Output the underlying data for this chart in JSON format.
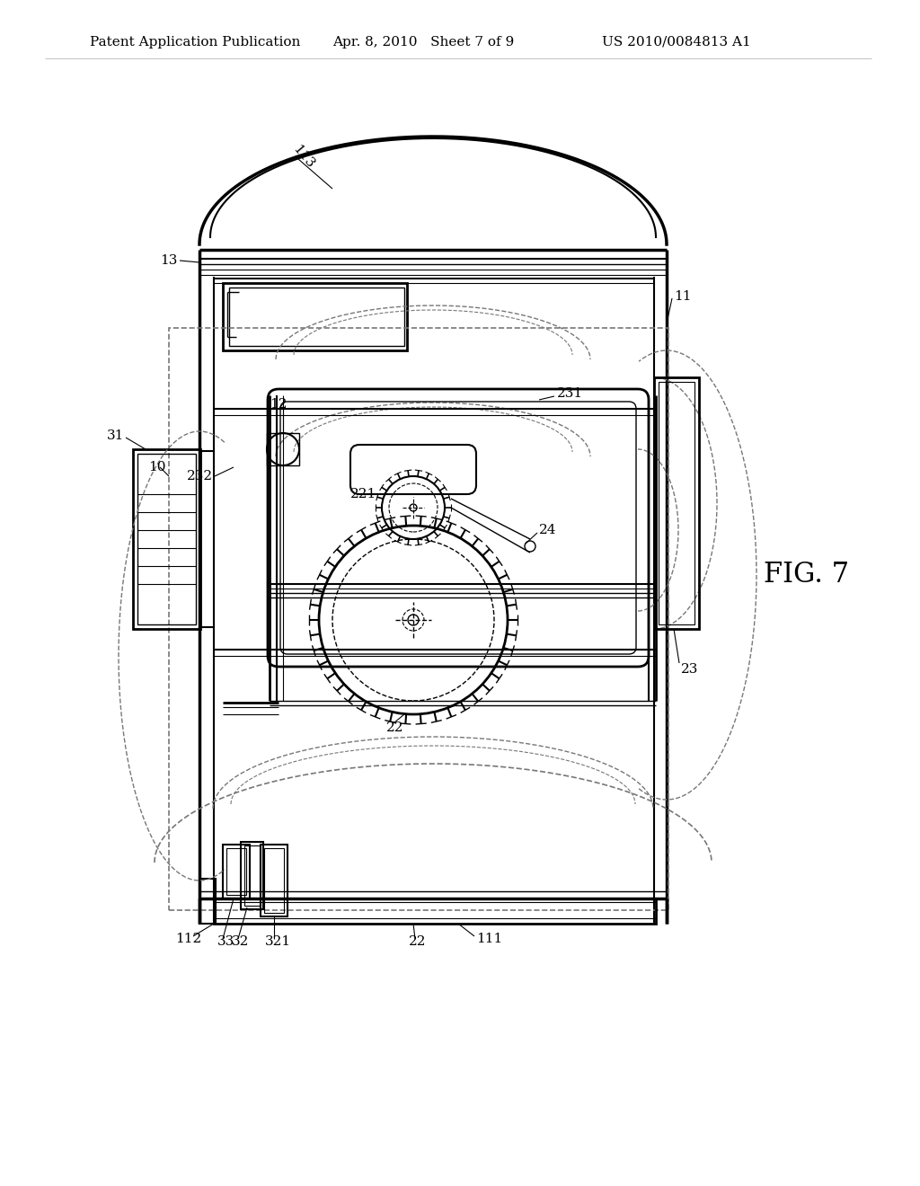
{
  "header_left": "Patent Application Publication",
  "header_mid": "Apr. 8, 2010   Sheet 7 of 9",
  "header_right": "US 2010/0084813 A1",
  "fig_label": "FIG. 7",
  "background_color": "#ffffff",
  "line_color": "#000000",
  "dashed_color": "#777777",
  "header_fontsize": 11,
  "fig_label_fontsize": 22,
  "ref_fontsize": 11
}
